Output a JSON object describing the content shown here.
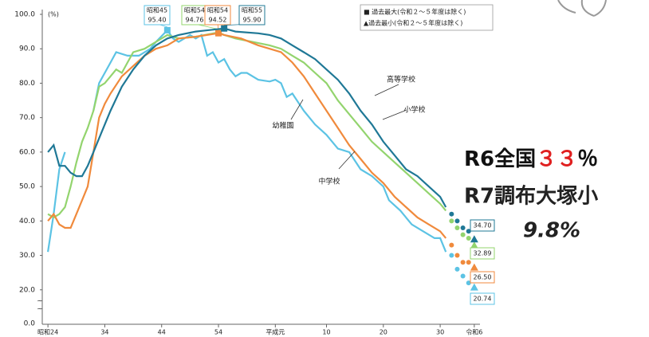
{
  "chart_data": {
    "type": "line",
    "y_unit": "(%)",
    "xlim": [
      1948,
      2025
    ],
    "ylim": [
      10,
      100
    ],
    "y_break_label": "0.0",
    "xticks": [
      {
        "value": 1949,
        "label": "昭和24"
      },
      {
        "value": 1959,
        "label": "34"
      },
      {
        "value": 1969,
        "label": "44"
      },
      {
        "value": 1979,
        "label": "54"
      },
      {
        "value": 1989,
        "label": "平成元"
      },
      {
        "value": 1998,
        "label": "10"
      },
      {
        "value": 2008,
        "label": "20"
      },
      {
        "value": 2018,
        "label": "30"
      },
      {
        "value": 2024,
        "label": "令和6"
      }
    ],
    "yticks": [
      {
        "value": 20,
        "label": "20.0"
      },
      {
        "value": 30,
        "label": "30.0"
      },
      {
        "value": 40,
        "label": "40.0"
      },
      {
        "value": 50,
        "label": "50.0"
      },
      {
        "value": 60,
        "label": "60.0"
      },
      {
        "value": 70,
        "label": "70.0"
      },
      {
        "value": 80,
        "label": "80.0"
      },
      {
        "value": 90,
        "label": "90.0"
      },
      {
        "value": 100,
        "label": "100.0"
      }
    ],
    "legend": [
      "■ 過去最大(令和２～５年度は除く)",
      "▲過去最小(令和２～５年度は除く)"
    ],
    "series": [
      {
        "name": "幼稚園",
        "color": "#5cc3e4",
        "x": [
          1949,
          1950,
          1951,
          1952,
          1954,
          1957,
          1958,
          1960,
          1961,
          1963,
          1965,
          1967,
          1968,
          1970,
          1971,
          1972,
          1974,
          1975,
          1976,
          1977,
          1978,
          1979,
          1980,
          1981,
          1982,
          1983,
          1984,
          1986,
          1988,
          1989,
          1990,
          1991,
          1992,
          1994,
          1996,
          1998,
          2000,
          2002,
          2004,
          2006,
          2008,
          2009,
          2011,
          2013,
          2015,
          2017,
          2018,
          2019
        ],
        "values": [
          31,
          42,
          55,
          60,
          null,
          72,
          80,
          86,
          89,
          88,
          88,
          90,
          92,
          95.4,
          93,
          92,
          94,
          93,
          94,
          88,
          89,
          86,
          87,
          84,
          82,
          83,
          83,
          81,
          80.5,
          81,
          80,
          76,
          77,
          72,
          68,
          65,
          61,
          60,
          55,
          53,
          50,
          46,
          43,
          39,
          37,
          35,
          35,
          31
        ],
        "recent_x": [
          2020,
          2021,
          2022,
          2023
        ],
        "recent_values": [
          30,
          26,
          24,
          22
        ],
        "max": {
          "x": 1970,
          "value": 95.4,
          "label": "昭和45",
          "value_label": "95.40"
        },
        "min": {
          "x": 2024,
          "value": 20.74
        }
      },
      {
        "name": "小学校",
        "color": "#93d46e",
        "x": [
          1949,
          1950,
          1951,
          1952,
          1953,
          1954,
          1955,
          1956,
          1957,
          1958,
          1959,
          1960,
          1961,
          1962,
          1963,
          1964,
          1966,
          1968,
          1970,
          1972,
          1975,
          1979,
          1980,
          1982,
          1985,
          1988,
          1990,
          1992,
          1994,
          1996,
          1998,
          2000,
          2002,
          2004,
          2006,
          2008,
          2010,
          2012,
          2014,
          2016,
          2018,
          2019
        ],
        "values": [
          42,
          41,
          42,
          44,
          50,
          57,
          63,
          67,
          72,
          79,
          80,
          82,
          84,
          83,
          86,
          89,
          90,
          92,
          94,
          93,
          93.5,
          94.76,
          94,
          93,
          92,
          91,
          90,
          88,
          86,
          83,
          80,
          75,
          71,
          67,
          63,
          60,
          57,
          54,
          51,
          48,
          45,
          43
        ],
        "recent_x": [
          2020,
          2021,
          2022,
          2023
        ],
        "recent_values": [
          40,
          38,
          36,
          35
        ],
        "max": {
          "x": 1979,
          "value": 94.76,
          "label": "昭和54",
          "value_label": "94.76"
        },
        "min": {
          "x": 2024,
          "value": 32.89
        }
      },
      {
        "name": "中学校",
        "color": "#f08a3c",
        "x": [
          1949,
          1950,
          1951,
          1952,
          1953,
          1954,
          1955,
          1956,
          1957,
          1958,
          1959,
          1960,
          1962,
          1964,
          1966,
          1968,
          1970,
          1972,
          1975,
          1979,
          1980,
          1983,
          1986,
          1988,
          1990,
          1992,
          1994,
          1996,
          1998,
          2000,
          2002,
          2004,
          2006,
          2008,
          2010,
          2012,
          2014,
          2016,
          2018,
          2019
        ],
        "values": [
          40,
          42,
          39,
          38,
          38,
          42,
          46,
          50,
          60,
          70,
          74,
          77,
          82,
          85,
          88,
          90,
          91,
          93,
          93.5,
          94.52,
          94,
          93,
          91,
          90,
          89,
          86,
          82,
          77,
          72,
          67,
          62,
          58,
          54,
          51,
          47,
          44,
          41,
          39,
          37,
          35
        ],
        "recent_x": [
          2020,
          2021,
          2022,
          2023
        ],
        "recent_values": [
          33,
          30,
          28,
          28
        ],
        "max": {
          "x": 1979,
          "value": 94.52,
          "label": "昭和54",
          "value_label": "94.52"
        },
        "min": {
          "x": 2024,
          "value": 26.5,
          "value_label": "26.50"
        }
      },
      {
        "name": "高等学校",
        "color": "#1f7896",
        "x": [
          1949,
          1950,
          1951,
          1952,
          1953,
          1954,
          1955,
          1956,
          1957,
          1958,
          1959,
          1960,
          1962,
          1964,
          1966,
          1968,
          1970,
          1972,
          1975,
          1980,
          1982,
          1986,
          1988,
          1990,
          1992,
          1994,
          1996,
          1998,
          2000,
          2002,
          2004,
          2006,
          2008,
          2010,
          2012,
          2014,
          2016,
          2018,
          2019
        ],
        "values": [
          60,
          62,
          56,
          56,
          54,
          53,
          53,
          56,
          60,
          64,
          68,
          72,
          79,
          84,
          88,
          91,
          93,
          94,
          95,
          95.9,
          95,
          94.5,
          94,
          93,
          91,
          89,
          87,
          84,
          81,
          77,
          72,
          68,
          63,
          59,
          55,
          53,
          50,
          47,
          44
        ],
        "recent_x": [
          2020,
          2021,
          2022,
          2023
        ],
        "recent_values": [
          42,
          40,
          38,
          37
        ],
        "max": {
          "x": 1980,
          "value": 95.9,
          "label": "昭和55",
          "value_label": "95.90"
        },
        "min": {
          "x": 2024,
          "value": 34.7,
          "value_label": "34.70"
        }
      }
    ],
    "overlay": {
      "line1": [
        "R6全国",
        "３３",
        "％"
      ],
      "line2": "R7調布大塚小",
      "line3": "9.8%"
    }
  }
}
